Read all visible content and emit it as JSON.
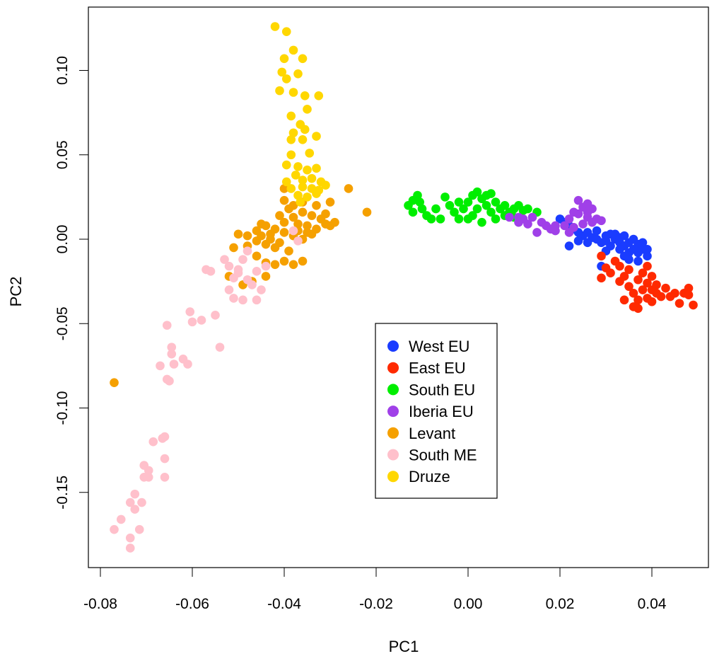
{
  "chart_data": {
    "type": "scatter",
    "xlabel": "PC1",
    "ylabel": "PC2",
    "xlim": [
      -0.0825,
      0.052
    ],
    "ylim": [
      -0.196,
      0.136
    ],
    "xticks": [
      -0.08,
      -0.06,
      -0.04,
      -0.02,
      0.0,
      0.02,
      0.04
    ],
    "xtick_labels": [
      "-0.08",
      "-0.06",
      "-0.04",
      "-0.02",
      "0.00",
      "0.02",
      "0.04"
    ],
    "yticks": [
      -0.15,
      -0.1,
      -0.05,
      0.0,
      0.05,
      0.1
    ],
    "ytick_labels": [
      "-0.15",
      "-0.10",
      "-0.05",
      "0.00",
      "0.05",
      "0.10"
    ],
    "grid": false,
    "legend_position": "center-bottom",
    "series": [
      {
        "name": "West EU",
        "color": "#1a3cff",
        "points": [
          [
            0.02,
            0.012
          ],
          [
            0.021,
            0.01
          ],
          [
            0.022,
            0.008
          ],
          [
            0.023,
            0.006
          ],
          [
            0.024,
            0.004
          ],
          [
            0.025,
            0.002
          ],
          [
            0.026,
            0.004
          ],
          [
            0.027,
            0.001
          ],
          [
            0.028,
            0.0
          ],
          [
            0.029,
            -0.002
          ],
          [
            0.03,
            0.002
          ],
          [
            0.031,
            0.003
          ],
          [
            0.032,
            0.0
          ],
          [
            0.033,
            -0.002
          ],
          [
            0.034,
            -0.004
          ],
          [
            0.035,
            -0.002
          ],
          [
            0.036,
            0.0
          ],
          [
            0.037,
            -0.003
          ],
          [
            0.038,
            -0.006
          ],
          [
            0.039,
            -0.01
          ],
          [
            0.037,
            -0.008
          ],
          [
            0.035,
            -0.008
          ],
          [
            0.033,
            -0.006
          ],
          [
            0.031,
            -0.004
          ],
          [
            0.03,
            -0.007
          ],
          [
            0.032,
            0.003
          ],
          [
            0.034,
            0.002
          ],
          [
            0.036,
            -0.006
          ],
          [
            0.038,
            -0.002
          ],
          [
            0.029,
            -0.016
          ],
          [
            0.022,
            -0.004
          ],
          [
            0.024,
            -0.001
          ],
          [
            0.035,
            -0.012
          ],
          [
            0.037,
            -0.013
          ],
          [
            0.028,
            0.005
          ],
          [
            0.033,
            0.001
          ],
          [
            0.03,
            -0.001
          ],
          [
            0.039,
            -0.006
          ],
          [
            0.034,
            -0.01
          ],
          [
            0.026,
            -0.002
          ]
        ]
      },
      {
        "name": "East EU",
        "color": "#ff2a00",
        "points": [
          [
            0.029,
            -0.01
          ],
          [
            0.03,
            -0.017
          ],
          [
            0.029,
            -0.023
          ],
          [
            0.031,
            -0.02
          ],
          [
            0.032,
            -0.013
          ],
          [
            0.033,
            -0.016
          ],
          [
            0.033,
            -0.025
          ],
          [
            0.034,
            -0.022
          ],
          [
            0.035,
            -0.028
          ],
          [
            0.035,
            -0.018
          ],
          [
            0.036,
            -0.032
          ],
          [
            0.036,
            -0.04
          ],
          [
            0.037,
            -0.041
          ],
          [
            0.037,
            -0.024
          ],
          [
            0.038,
            -0.03
          ],
          [
            0.038,
            -0.02
          ],
          [
            0.039,
            -0.035
          ],
          [
            0.039,
            -0.026
          ],
          [
            0.04,
            -0.03
          ],
          [
            0.04,
            -0.022
          ],
          [
            0.041,
            -0.032
          ],
          [
            0.041,
            -0.027
          ],
          [
            0.042,
            -0.034
          ],
          [
            0.043,
            -0.029
          ],
          [
            0.044,
            -0.034
          ],
          [
            0.045,
            -0.032
          ],
          [
            0.046,
            -0.038
          ],
          [
            0.047,
            -0.032
          ],
          [
            0.048,
            -0.029
          ],
          [
            0.048,
            -0.033
          ],
          [
            0.049,
            -0.039
          ],
          [
            0.034,
            -0.036
          ],
          [
            0.037,
            -0.036
          ],
          [
            0.04,
            -0.037
          ],
          [
            0.039,
            -0.016
          ]
        ]
      },
      {
        "name": "South EU",
        "color": "#00ee00",
        "points": [
          [
            -0.013,
            0.02
          ],
          [
            -0.012,
            0.023
          ],
          [
            -0.011,
            0.026
          ],
          [
            -0.0105,
            0.022
          ],
          [
            -0.01,
            0.018
          ],
          [
            -0.012,
            0.016
          ],
          [
            -0.009,
            0.014
          ],
          [
            -0.008,
            0.012
          ],
          [
            -0.006,
            0.012
          ],
          [
            -0.005,
            0.025
          ],
          [
            -0.004,
            0.02
          ],
          [
            -0.003,
            0.016
          ],
          [
            -0.002,
            0.012
          ],
          [
            -0.001,
            0.018
          ],
          [
            0.0,
            0.022
          ],
          [
            0.001,
            0.026
          ],
          [
            0.002,
            0.028
          ],
          [
            0.003,
            0.024
          ],
          [
            0.004,
            0.02
          ],
          [
            0.005,
            0.016
          ],
          [
            0.006,
            0.012
          ],
          [
            0.003,
            0.01
          ],
          [
            0.001,
            0.014
          ],
          [
            0.0,
            0.012
          ],
          [
            0.002,
            0.018
          ],
          [
            0.004,
            0.026
          ],
          [
            0.006,
            0.022
          ],
          [
            0.007,
            0.018
          ],
          [
            0.008,
            0.02
          ],
          [
            0.009,
            0.016
          ],
          [
            0.01,
            0.018
          ],
          [
            0.011,
            0.02
          ],
          [
            0.012,
            0.017
          ],
          [
            0.013,
            0.018
          ],
          [
            0.015,
            0.016
          ],
          [
            0.008,
            0.014
          ],
          [
            -0.007,
            0.018
          ],
          [
            -0.002,
            0.022
          ],
          [
            0.005,
            0.027
          ],
          [
            0.01,
            0.013
          ]
        ]
      },
      {
        "name": "Iberia EU",
        "color": "#a040e8",
        "points": [
          [
            0.009,
            0.013
          ],
          [
            0.011,
            0.01
          ],
          [
            0.012,
            0.012
          ],
          [
            0.013,
            0.009
          ],
          [
            0.014,
            0.013
          ],
          [
            0.015,
            0.004
          ],
          [
            0.016,
            0.01
          ],
          [
            0.017,
            0.008
          ],
          [
            0.018,
            0.006
          ],
          [
            0.019,
            0.005
          ],
          [
            0.019,
            0.008
          ],
          [
            0.021,
            0.008
          ],
          [
            0.022,
            0.012
          ],
          [
            0.023,
            0.016
          ],
          [
            0.024,
            0.023
          ],
          [
            0.025,
            0.019
          ],
          [
            0.026,
            0.021
          ],
          [
            0.027,
            0.018
          ],
          [
            0.024,
            0.015
          ],
          [
            0.026,
            0.013
          ],
          [
            0.027,
            0.01
          ],
          [
            0.028,
            0.012
          ],
          [
            0.025,
            0.009
          ],
          [
            0.023,
            0.007
          ],
          [
            0.022,
            0.004
          ],
          [
            0.029,
            0.011
          ],
          [
            0.026,
            0.016
          ],
          [
            0.011,
            0.013
          ]
        ]
      },
      {
        "name": "Levant",
        "color": "#f5a000",
        "points": [
          [
            -0.077,
            -0.085
          ],
          [
            -0.022,
            0.016
          ],
          [
            -0.026,
            0.03
          ],
          [
            -0.04,
            0.03
          ],
          [
            -0.04,
            0.023
          ],
          [
            -0.038,
            0.02
          ],
          [
            -0.036,
            0.022
          ],
          [
            -0.033,
            0.02
          ],
          [
            -0.03,
            0.022
          ],
          [
            -0.031,
            0.015
          ],
          [
            -0.029,
            0.01
          ],
          [
            -0.03,
            0.008
          ],
          [
            -0.032,
            0.012
          ],
          [
            -0.034,
            0.014
          ],
          [
            -0.036,
            0.016
          ],
          [
            -0.038,
            0.013
          ],
          [
            -0.035,
            0.008
          ],
          [
            -0.033,
            0.006
          ],
          [
            -0.037,
            0.009
          ],
          [
            -0.039,
            0.018
          ],
          [
            -0.041,
            0.014
          ],
          [
            -0.035,
            0.004
          ],
          [
            -0.036,
            0.0
          ],
          [
            -0.038,
            0.002
          ],
          [
            -0.04,
            0.004
          ],
          [
            -0.042,
            0.006
          ],
          [
            -0.044,
            0.008
          ],
          [
            -0.046,
            0.005
          ],
          [
            -0.045,
            0.002
          ],
          [
            -0.043,
            0.0
          ],
          [
            -0.041,
            -0.002
          ],
          [
            -0.044,
            -0.003
          ],
          [
            -0.046,
            -0.001
          ],
          [
            -0.048,
            0.002
          ],
          [
            -0.05,
            0.003
          ],
          [
            -0.051,
            -0.005
          ],
          [
            -0.048,
            -0.004
          ],
          [
            -0.042,
            -0.005
          ],
          [
            -0.039,
            -0.007
          ],
          [
            -0.04,
            -0.013
          ],
          [
            -0.042,
            -0.015
          ],
          [
            -0.044,
            -0.014
          ],
          [
            -0.046,
            -0.01
          ],
          [
            -0.038,
            -0.015
          ],
          [
            -0.036,
            -0.013
          ],
          [
            -0.044,
            -0.022
          ],
          [
            -0.047,
            -0.025
          ],
          [
            -0.049,
            -0.027
          ],
          [
            -0.052,
            -0.022
          ],
          [
            -0.04,
            0.01
          ],
          [
            -0.043,
            0.003
          ],
          [
            -0.037,
            0.005
          ],
          [
            -0.034,
            0.003
          ],
          [
            -0.031,
            0.009
          ],
          [
            -0.045,
            0.009
          ]
        ]
      },
      {
        "name": "South ME",
        "color": "#ffc0cb",
        "points": [
          [
            -0.077,
            -0.172
          ],
          [
            -0.0735,
            -0.183
          ],
          [
            -0.0735,
            -0.177
          ],
          [
            -0.0715,
            -0.172
          ],
          [
            -0.0755,
            -0.166
          ],
          [
            -0.0725,
            -0.16
          ],
          [
            -0.0735,
            -0.156
          ],
          [
            -0.071,
            -0.156
          ],
          [
            -0.0725,
            -0.151
          ],
          [
            -0.0705,
            -0.141
          ],
          [
            -0.0695,
            -0.141
          ],
          [
            -0.0705,
            -0.134
          ],
          [
            -0.0695,
            -0.137
          ],
          [
            -0.0685,
            -0.12
          ],
          [
            -0.066,
            -0.13
          ],
          [
            -0.066,
            -0.141
          ],
          [
            -0.0665,
            -0.118
          ],
          [
            -0.066,
            -0.117
          ],
          [
            -0.065,
            -0.084
          ],
          [
            -0.0655,
            -0.083
          ],
          [
            -0.064,
            -0.074
          ],
          [
            -0.067,
            -0.075
          ],
          [
            -0.0645,
            -0.068
          ],
          [
            -0.0645,
            -0.064
          ],
          [
            -0.062,
            -0.071
          ],
          [
            -0.061,
            -0.074
          ],
          [
            -0.0655,
            -0.051
          ],
          [
            -0.0605,
            -0.043
          ],
          [
            -0.06,
            -0.049
          ],
          [
            -0.058,
            -0.048
          ],
          [
            -0.055,
            -0.045
          ],
          [
            -0.054,
            -0.064
          ],
          [
            -0.057,
            -0.018
          ],
          [
            -0.056,
            -0.019
          ],
          [
            -0.052,
            -0.016
          ],
          [
            -0.051,
            -0.023
          ],
          [
            -0.052,
            -0.03
          ],
          [
            -0.051,
            -0.035
          ],
          [
            -0.049,
            -0.036
          ],
          [
            -0.046,
            -0.036
          ],
          [
            -0.045,
            -0.03
          ],
          [
            -0.048,
            -0.024
          ],
          [
            -0.05,
            -0.018
          ],
          [
            -0.049,
            -0.012
          ],
          [
            -0.048,
            -0.007
          ],
          [
            -0.046,
            -0.019
          ],
          [
            -0.044,
            -0.016
          ],
          [
            -0.053,
            -0.012
          ],
          [
            -0.05,
            -0.02
          ],
          [
            -0.047,
            -0.027
          ],
          [
            -0.037,
            -0.001
          ],
          [
            -0.038,
            0.005
          ]
        ]
      },
      {
        "name": "Druze",
        "color": "#ffd700",
        "points": [
          [
            -0.042,
            0.126
          ],
          [
            -0.0395,
            0.123
          ],
          [
            -0.038,
            0.112
          ],
          [
            -0.04,
            0.107
          ],
          [
            -0.036,
            0.107
          ],
          [
            -0.0405,
            0.099
          ],
          [
            -0.0395,
            0.095
          ],
          [
            -0.037,
            0.098
          ],
          [
            -0.041,
            0.088
          ],
          [
            -0.038,
            0.087
          ],
          [
            -0.0355,
            0.085
          ],
          [
            -0.0325,
            0.085
          ],
          [
            -0.035,
            0.077
          ],
          [
            -0.0385,
            0.073
          ],
          [
            -0.0365,
            0.068
          ],
          [
            -0.038,
            0.063
          ],
          [
            -0.0355,
            0.065
          ],
          [
            -0.0385,
            0.059
          ],
          [
            -0.036,
            0.059
          ],
          [
            -0.033,
            0.061
          ],
          [
            -0.0385,
            0.05
          ],
          [
            -0.0345,
            0.051
          ],
          [
            -0.0395,
            0.044
          ],
          [
            -0.037,
            0.043
          ],
          [
            -0.035,
            0.041
          ],
          [
            -0.033,
            0.042
          ],
          [
            -0.0375,
            0.038
          ],
          [
            -0.036,
            0.035
          ],
          [
            -0.034,
            0.036
          ],
          [
            -0.032,
            0.034
          ],
          [
            -0.036,
            0.031
          ],
          [
            -0.034,
            0.03
          ],
          [
            -0.0325,
            0.029
          ],
          [
            -0.0385,
            0.03
          ],
          [
            -0.037,
            0.026
          ],
          [
            -0.035,
            0.025
          ],
          [
            -0.033,
            0.027
          ],
          [
            -0.0395,
            0.034
          ],
          [
            -0.031,
            0.032
          ],
          [
            -0.0365,
            0.022
          ]
        ]
      }
    ]
  }
}
